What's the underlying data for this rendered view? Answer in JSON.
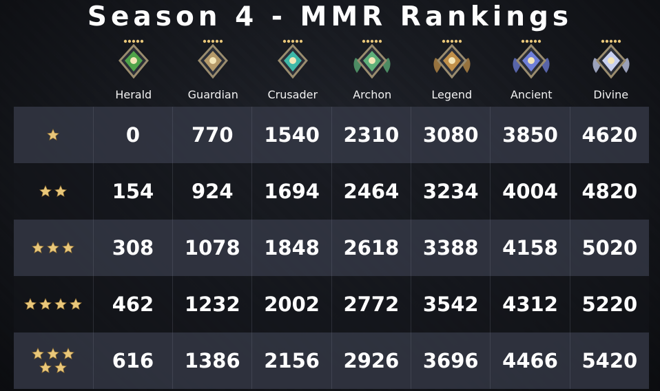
{
  "title": "Season 4 - MMR Rankings",
  "ranks": [
    "Herald",
    "Guardian",
    "Crusader",
    "Archon",
    "Legend",
    "Ancient",
    "Divine"
  ],
  "medal_colors": [
    "#4fa34a",
    "#b59a6a",
    "#3fb8a8",
    "#5fb07a",
    "#c0904a",
    "#6f7fd8",
    "#c8d0f0"
  ],
  "rows": [
    {
      "stars": 1,
      "values": [
        "0",
        "770",
        "1540",
        "2310",
        "3080",
        "3850",
        "4620"
      ]
    },
    {
      "stars": 2,
      "values": [
        "154",
        "924",
        "1694",
        "2464",
        "3234",
        "4004",
        "4820"
      ]
    },
    {
      "stars": 3,
      "values": [
        "308",
        "1078",
        "1848",
        "2618",
        "3388",
        "4158",
        "5020"
      ]
    },
    {
      "stars": 4,
      "values": [
        "462",
        "1232",
        "2002",
        "2772",
        "3542",
        "4312",
        "5220"
      ]
    },
    {
      "stars": 5,
      "values": [
        "616",
        "1386",
        "2156",
        "2926",
        "3696",
        "4466",
        "5420"
      ]
    }
  ],
  "star_color": "#e9c77a"
}
